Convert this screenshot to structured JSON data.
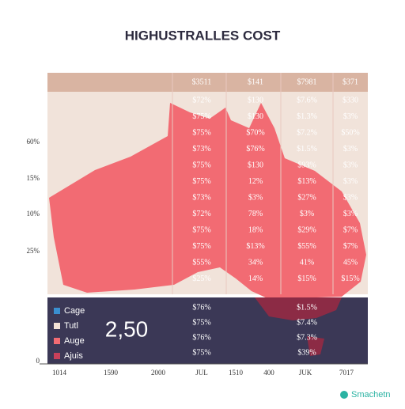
{
  "title": "HIGHUSTRALLES COST",
  "table": {
    "header": [
      "$3511",
      "$141",
      "$7981",
      "$371"
    ],
    "rows": [
      [
        "$72%",
        "$130",
        "$7.6%",
        "$330"
      ],
      [
        "$75%",
        "$130",
        "$1.3%",
        "$3%"
      ],
      [
        "$75%",
        "$70%",
        "$7.2%",
        "$50%"
      ],
      [
        "$73%",
        "$76%",
        "$1.5%",
        "$3%"
      ],
      [
        "$75%",
        "$130",
        "$93%",
        "$3%"
      ],
      [
        "$75%",
        "12%",
        "$13%",
        "$3%"
      ],
      [
        "$73%",
        "$3%",
        "$27%",
        "$3%"
      ],
      [
        "$72%",
        "78%",
        "$3%",
        "$3%"
      ],
      [
        "$75%",
        "18%",
        "$29%",
        "$7%"
      ],
      [
        "$75%",
        "$13%",
        "$55%",
        "$7%"
      ],
      [
        "$55%",
        "34%",
        "41%",
        "45%"
      ],
      [
        "$25%",
        "14%",
        "$15%",
        "$15%"
      ]
    ],
    "footer_rows": [
      [
        "$76%",
        "$1.5%"
      ],
      [
        "$75%",
        "$7.4%"
      ],
      [
        "$76%",
        "$7.3%"
      ],
      [
        "$75%",
        "$39%"
      ]
    ]
  },
  "y_labels": [
    "60%",
    "15%",
    "10%",
    "25%",
    "0"
  ],
  "x_labels": [
    "1014",
    "1590",
    "2000",
    "JUL",
    "1510",
    "400",
    "JUK",
    "7017"
  ],
  "legend": [
    {
      "name": "Cage",
      "color": "#3a8fd0"
    },
    {
      "name": "Tutl",
      "color": "#f3e2d6"
    },
    {
      "name": "Auge",
      "color": "#f26b73"
    },
    {
      "name": "Ajuis",
      "color": "#c9405a"
    }
  ],
  "big_number": "2,50",
  "brand": "Smachetn"
}
